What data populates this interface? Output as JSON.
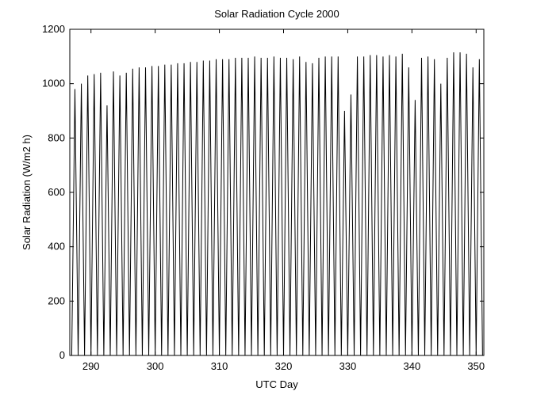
{
  "chart_data": {
    "type": "line",
    "title": "Solar Radiation Cycle 2000",
    "x_label": "UTC Day",
    "y_label": "Solar Radiation (W/m2 h)",
    "color": "#000000",
    "x": [
      287,
      287.5,
      288,
      288.5,
      289,
      289.5,
      290,
      290.5,
      291,
      291.5,
      292,
      292.5,
      293,
      293.5,
      294,
      294.5,
      295,
      295.5,
      296,
      296.5,
      297,
      297.5,
      298,
      298.5,
      299,
      299.5,
      300,
      300.5,
      301,
      301.5,
      302,
      302.5,
      303,
      303.5,
      304,
      304.5,
      305,
      305.5,
      306,
      306.5,
      307,
      307.5,
      308,
      308.5,
      309,
      309.5,
      310,
      310.5,
      311,
      311.5,
      312,
      312.5,
      313,
      313.5,
      314,
      314.5,
      315,
      315.5,
      316,
      316.5,
      317,
      317.5,
      318,
      318.5,
      319,
      319.5,
      320,
      320.5,
      321,
      321.5,
      322,
      322.5,
      323,
      323.5,
      324,
      324.5,
      325,
      325.5,
      326,
      326.5,
      327,
      327.5,
      328,
      328.5,
      329,
      329.5,
      330,
      330.5,
      331,
      331.5,
      332,
      332.5,
      333,
      333.5,
      334,
      334.5,
      335,
      335.5,
      336,
      336.5,
      337,
      337.5,
      338,
      338.5,
      339,
      339.5,
      340,
      340.5,
      341,
      341.5,
      342,
      342.5,
      343,
      343.5,
      344,
      344.5,
      345,
      345.5,
      346,
      346.5,
      347,
      347.5,
      348,
      348.5,
      349,
      349.5,
      350,
      350.5,
      351
    ],
    "values": [
      0,
      980,
      0,
      1000,
      0,
      1030,
      0,
      1035,
      0,
      1040,
      0,
      920,
      0,
      1045,
      0,
      1030,
      0,
      1040,
      0,
      1055,
      0,
      1060,
      0,
      1060,
      0,
      1065,
      0,
      1065,
      0,
      1070,
      0,
      1070,
      0,
      1075,
      0,
      1075,
      0,
      1080,
      0,
      1080,
      0,
      1085,
      0,
      1085,
      0,
      1090,
      0,
      1090,
      0,
      1090,
      0,
      1095,
      0,
      1095,
      0,
      1095,
      0,
      1100,
      0,
      1095,
      0,
      1095,
      0,
      1100,
      0,
      1095,
      0,
      1095,
      0,
      1090,
      0,
      1100,
      0,
      1080,
      0,
      1075,
      0,
      1095,
      0,
      1100,
      0,
      1100,
      0,
      1100,
      0,
      900,
      0,
      960,
      0,
      1100,
      0,
      1100,
      0,
      1105,
      0,
      1105,
      0,
      1100,
      0,
      1105,
      0,
      1100,
      0,
      1110,
      0,
      1060,
      0,
      940,
      0,
      1095,
      0,
      1100,
      0,
      1090,
      0,
      1000,
      0,
      1095,
      0,
      1115,
      0,
      1115,
      0,
      1110,
      0,
      1060,
      0,
      1090,
      0
    ],
    "xlim": [
      286.7,
      351.2
    ],
    "xticks": [
      290,
      300,
      310,
      320,
      330,
      340,
      350
    ],
    "ylim": [
      0,
      1200
    ],
    "yticks": [
      0,
      200,
      400,
      600,
      800,
      1000,
      1200
    ]
  }
}
